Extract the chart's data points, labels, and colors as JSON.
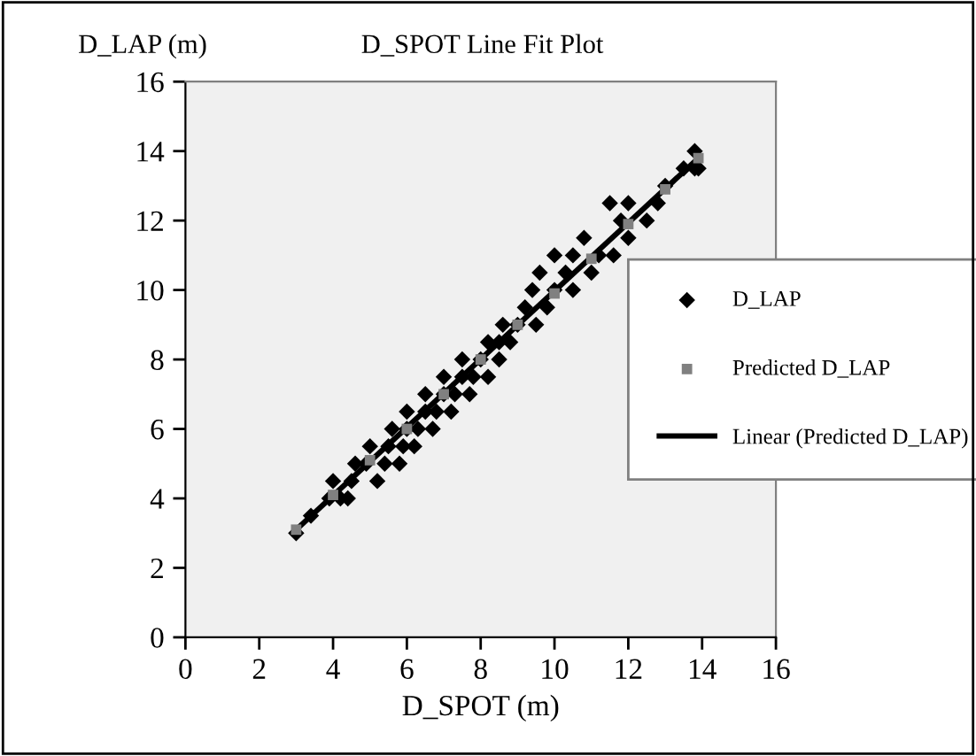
{
  "chart_data": {
    "type": "scatter",
    "title": "D_SPOT Line Fit Plot",
    "xlabel": "D_SPOT (m)",
    "ylabel": "D_LAP (m)",
    "xlim": [
      0,
      16
    ],
    "xticks": [
      0,
      2,
      4,
      6,
      8,
      10,
      12,
      14,
      16
    ],
    "ylim": [
      0,
      16
    ],
    "yticks": [
      0,
      2,
      4,
      6,
      8,
      10,
      12,
      14,
      16
    ],
    "grid": false,
    "legend": "right",
    "series": [
      {
        "name": "D_LAP",
        "marker": "diamond",
        "color": "#000000",
        "x": [
          3.0,
          3.4,
          3.9,
          4.0,
          4.2,
          4.4,
          4.5,
          4.6,
          4.9,
          5.0,
          5.2,
          5.4,
          5.5,
          5.6,
          5.8,
          5.9,
          6.0,
          6.0,
          6.2,
          6.3,
          6.5,
          6.5,
          6.7,
          6.8,
          7.0,
          7.0,
          7.2,
          7.3,
          7.5,
          7.5,
          7.7,
          7.8,
          8.0,
          8.2,
          8.2,
          8.5,
          8.5,
          8.6,
          8.8,
          9.0,
          9.2,
          9.4,
          9.5,
          9.6,
          9.8,
          10.0,
          10.0,
          10.3,
          10.5,
          10.5,
          10.8,
          11.0,
          11.2,
          11.5,
          11.6,
          11.8,
          12.0,
          12.0,
          12.5,
          12.8,
          13.0,
          13.5,
          13.8,
          13.8,
          13.9
        ],
        "values": [
          3.0,
          3.5,
          4.0,
          4.5,
          4.0,
          4.0,
          4.5,
          5.0,
          5.0,
          5.5,
          4.5,
          5.0,
          5.5,
          6.0,
          5.0,
          5.5,
          6.0,
          6.5,
          5.5,
          6.0,
          6.5,
          7.0,
          6.0,
          6.5,
          7.0,
          7.5,
          6.5,
          7.0,
          7.5,
          8.0,
          7.0,
          7.5,
          8.0,
          8.5,
          7.5,
          8.0,
          8.5,
          9.0,
          8.5,
          9.0,
          9.5,
          10.0,
          9.0,
          10.5,
          9.5,
          10.0,
          11.0,
          10.5,
          10.0,
          11.0,
          11.5,
          10.5,
          11.0,
          12.5,
          11.0,
          12.0,
          11.5,
          12.5,
          12.0,
          12.5,
          13.0,
          13.5,
          13.5,
          14.0,
          13.5
        ]
      },
      {
        "name": "Predicted D_LAP",
        "marker": "square",
        "color": "#808080",
        "x": [
          3,
          4,
          5,
          6,
          7,
          8,
          9,
          10,
          11,
          12,
          13,
          13.9
        ],
        "values": [
          3.1,
          4.1,
          5.1,
          6.0,
          7.0,
          8.0,
          9.0,
          9.9,
          10.9,
          11.9,
          12.9,
          13.8
        ]
      },
      {
        "name": "Linear (Predicted D_LAP)",
        "type": "line",
        "marker": "none",
        "line_style": "solid",
        "color": "#000000",
        "x": [
          2.9,
          13.9
        ],
        "values": [
          3.0,
          13.8
        ]
      }
    ]
  }
}
